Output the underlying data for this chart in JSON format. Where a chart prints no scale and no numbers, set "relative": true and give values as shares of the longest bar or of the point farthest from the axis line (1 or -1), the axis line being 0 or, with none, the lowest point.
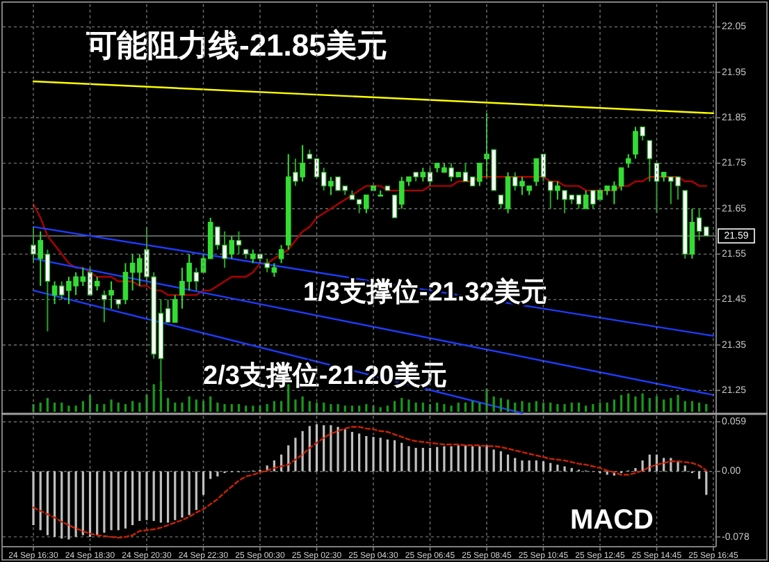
{
  "chart_data": [
    {
      "type": "candlestick",
      "tick_labels": "y",
      "grid": "y",
      "categories": [
        null,
        null,
        null,
        null,
        null,
        null,
        null,
        null,
        null,
        null,
        null,
        null,
        null,
        null,
        null,
        null,
        null,
        null,
        null,
        null,
        null,
        null,
        null,
        null,
        null,
        null,
        null,
        null,
        null,
        null,
        null,
        null,
        null,
        null,
        null,
        null,
        null,
        null,
        null,
        null,
        null,
        null,
        null,
        null,
        null,
        null,
        null,
        null,
        null,
        null,
        null,
        null,
        null,
        null,
        null,
        null,
        null,
        null,
        null,
        null,
        null,
        null,
        null,
        null,
        null,
        null,
        null,
        null,
        null,
        null,
        null,
        null,
        null,
        null,
        null,
        null,
        null,
        null,
        null,
        null,
        null,
        null,
        null,
        null,
        null,
        null,
        null,
        null,
        null,
        null,
        null,
        null,
        null,
        null,
        null,
        null,
        null
      ],
      "ylim": [
        21.2,
        22.1
      ],
      "yticks": [
        22.05,
        21.95,
        21.85,
        21.75,
        21.65,
        21.55,
        21.45,
        21.35,
        21.25
      ],
      "ohlc": [
        [
          21.57,
          21.61,
          21.53,
          21.55
        ],
        [
          21.54,
          21.6,
          21.48,
          21.58
        ],
        [
          21.55,
          21.56,
          21.38,
          21.49
        ],
        [
          21.46,
          21.49,
          21.44,
          21.48
        ],
        [
          21.48,
          21.49,
          21.45,
          21.46
        ],
        [
          21.47,
          21.5,
          21.44,
          21.49
        ],
        [
          21.48,
          21.51,
          21.46,
          21.5
        ],
        [
          21.49,
          21.52,
          21.48,
          21.5
        ],
        [
          21.51,
          21.52,
          21.46,
          21.46
        ],
        [
          21.48,
          21.5,
          21.47,
          21.49
        ],
        [
          21.46,
          21.47,
          21.4,
          21.45
        ],
        [
          21.46,
          21.49,
          21.43,
          21.47
        ],
        [
          21.45,
          21.45,
          21.43,
          21.44
        ],
        [
          21.45,
          21.53,
          21.44,
          21.51
        ],
        [
          21.51,
          21.55,
          21.47,
          21.53
        ],
        [
          21.51,
          21.55,
          21.48,
          21.54
        ],
        [
          21.56,
          21.61,
          21.49,
          21.5
        ],
        [
          21.5,
          21.51,
          21.32,
          21.33
        ],
        [
          21.42,
          21.45,
          21.25,
          21.32
        ],
        [
          21.43,
          21.45,
          21.4,
          21.4
        ],
        [
          21.4,
          21.46,
          21.4,
          21.45
        ],
        [
          21.46,
          21.52,
          21.43,
          21.49
        ],
        [
          21.49,
          21.55,
          21.47,
          21.53
        ],
        [
          21.51,
          21.52,
          21.47,
          21.49
        ],
        [
          21.51,
          21.55,
          21.51,
          21.54
        ],
        [
          21.54,
          21.63,
          21.54,
          21.62
        ],
        [
          21.61,
          21.61,
          21.56,
          21.57
        ],
        [
          21.57,
          21.6,
          21.52,
          21.54
        ],
        [
          21.55,
          21.59,
          21.54,
          21.58
        ],
        [
          21.58,
          21.6,
          21.55,
          21.57
        ],
        [
          21.56,
          21.56,
          21.54,
          21.55
        ],
        [
          21.54,
          21.56,
          21.53,
          21.55
        ],
        [
          21.55,
          21.55,
          21.53,
          21.54
        ],
        [
          21.53,
          21.54,
          21.51,
          21.52
        ],
        [
          21.51,
          21.53,
          21.5,
          21.52
        ],
        [
          21.54,
          21.57,
          21.53,
          21.56
        ],
        [
          21.57,
          21.77,
          21.56,
          21.72
        ],
        [
          21.73,
          21.76,
          21.7,
          21.71
        ],
        [
          21.72,
          21.79,
          21.71,
          21.75
        ],
        [
          21.77,
          21.78,
          21.76,
          21.76
        ],
        [
          21.76,
          21.76,
          21.72,
          21.72
        ],
        [
          21.73,
          21.74,
          21.69,
          21.7
        ],
        [
          21.7,
          21.72,
          21.68,
          21.71
        ],
        [
          21.72,
          21.72,
          21.69,
          21.69
        ],
        [
          21.7,
          21.7,
          21.68,
          21.69
        ],
        [
          21.68,
          21.69,
          21.67,
          21.67
        ],
        [
          21.67,
          21.67,
          21.64,
          21.66
        ],
        [
          21.65,
          21.68,
          21.64,
          21.68
        ],
        [
          21.69,
          21.7,
          21.69,
          21.7
        ],
        [
          21.68,
          21.69,
          21.68,
          21.68
        ],
        [
          21.7,
          21.7,
          21.69,
          21.69
        ],
        [
          21.68,
          21.68,
          21.63,
          21.63
        ],
        [
          21.66,
          21.72,
          21.65,
          21.71
        ],
        [
          21.71,
          21.72,
          21.7,
          21.72
        ],
        [
          21.73,
          21.73,
          21.71,
          21.72
        ],
        [
          21.72,
          21.74,
          21.71,
          21.73
        ],
        [
          21.73,
          21.74,
          21.7,
          21.71
        ],
        [
          21.74,
          21.75,
          21.73,
          21.75
        ],
        [
          21.73,
          21.75,
          21.73,
          21.74
        ],
        [
          21.74,
          21.75,
          21.71,
          21.72
        ],
        [
          21.72,
          21.73,
          21.72,
          21.73
        ],
        [
          21.73,
          21.75,
          21.71,
          21.71
        ],
        [
          21.72,
          21.72,
          21.7,
          21.7
        ],
        [
          21.71,
          21.75,
          21.7,
          21.75
        ],
        [
          21.76,
          21.86,
          21.72,
          21.77
        ],
        [
          21.78,
          21.78,
          21.69,
          21.69
        ],
        [
          21.68,
          21.68,
          21.65,
          21.66
        ],
        [
          21.65,
          21.73,
          21.64,
          21.72
        ],
        [
          21.72,
          21.73,
          21.69,
          21.7
        ],
        [
          21.7,
          21.72,
          21.68,
          21.71
        ],
        [
          21.69,
          21.7,
          21.68,
          21.7
        ],
        [
          21.71,
          21.76,
          21.7,
          21.76
        ],
        [
          21.77,
          21.77,
          21.71,
          21.72
        ],
        [
          21.71,
          21.71,
          21.65,
          21.69
        ],
        [
          21.69,
          21.71,
          21.67,
          21.7
        ],
        [
          21.69,
          21.69,
          21.64,
          21.67
        ],
        [
          21.68,
          21.68,
          21.66,
          21.67
        ],
        [
          21.68,
          21.68,
          21.65,
          21.66
        ],
        [
          21.65,
          21.69,
          21.65,
          21.68
        ],
        [
          21.69,
          21.69,
          21.65,
          21.66
        ],
        [
          21.67,
          21.69,
          21.67,
          21.69
        ],
        [
          21.69,
          21.7,
          21.68,
          21.7
        ],
        [
          21.69,
          21.71,
          21.66,
          21.7
        ],
        [
          21.7,
          21.74,
          21.69,
          21.74
        ],
        [
          21.75,
          21.77,
          21.74,
          21.76
        ],
        [
          21.77,
          21.83,
          21.76,
          21.82
        ],
        [
          21.83,
          21.83,
          21.8,
          21.81
        ],
        [
          21.8,
          21.8,
          21.71,
          21.76
        ],
        [
          21.75,
          21.75,
          21.64,
          21.71
        ],
        [
          21.72,
          21.73,
          21.71,
          21.73
        ],
        [
          21.72,
          21.72,
          21.66,
          21.71
        ],
        [
          21.72,
          21.72,
          21.67,
          21.7
        ],
        [
          21.69,
          21.69,
          21.54,
          21.55
        ],
        [
          21.55,
          21.65,
          21.54,
          21.62
        ],
        [
          21.63,
          21.65,
          21.58,
          21.6
        ],
        [
          21.61,
          21.61,
          21.59,
          21.59
        ],
        null
      ],
      "series": [
        {
          "type": "line",
          "color": "#b00000",
          "values": [
            21.66,
            21.63,
            21.59,
            21.57,
            21.55,
            21.53,
            21.52,
            21.52,
            21.51,
            21.5,
            21.5,
            21.5,
            21.49,
            21.49,
            21.49,
            21.48,
            21.48,
            21.47,
            21.47,
            21.46,
            21.46,
            21.46,
            21.46,
            21.46,
            21.47,
            21.47,
            21.48,
            21.49,
            21.5,
            21.5,
            21.5,
            21.51,
            21.53,
            21.53,
            21.54,
            21.55,
            21.56,
            21.58,
            21.6,
            21.61,
            21.63,
            21.64,
            21.65,
            21.66,
            21.67,
            21.68,
            21.69,
            21.7,
            21.7,
            21.7,
            21.69,
            21.69,
            21.69,
            21.69,
            21.69,
            21.69,
            21.7,
            21.7,
            21.7,
            21.7,
            21.71,
            21.71,
            21.71,
            21.72,
            21.72,
            21.72,
            21.72,
            21.72,
            21.72,
            21.72,
            21.72,
            21.72,
            21.72,
            21.71,
            21.71,
            21.7,
            21.7,
            21.7,
            21.69,
            21.69,
            21.69,
            21.69,
            21.69,
            21.7,
            21.7,
            21.71,
            21.71,
            21.72,
            21.72,
            21.72,
            21.72,
            21.72,
            21.71,
            21.71,
            21.7,
            21.7,
            null
          ]
        },
        {
          "type": "line",
          "color": "#ffff00",
          "values": [
            21.93,
            null,
            null,
            null,
            null,
            null,
            null,
            null,
            null,
            null,
            null,
            null,
            null,
            null,
            null,
            null,
            null,
            null,
            null,
            null,
            null,
            null,
            null,
            null,
            null,
            null,
            null,
            null,
            null,
            null,
            null,
            null,
            null,
            null,
            null,
            null,
            null,
            null,
            null,
            null,
            null,
            null,
            null,
            null,
            null,
            null,
            null,
            null,
            null,
            null,
            null,
            null,
            null,
            null,
            null,
            null,
            null,
            null,
            null,
            null,
            null,
            null,
            null,
            null,
            null,
            null,
            null,
            null,
            null,
            null,
            null,
            null,
            null,
            null,
            null,
            null,
            null,
            null,
            null,
            null,
            null,
            null,
            null,
            null,
            null,
            null,
            null,
            null,
            null,
            null,
            null,
            null,
            null,
            null,
            null,
            null,
            21.86
          ]
        },
        {
          "type": "line",
          "color": "#1e3cff",
          "values": [
            21.61,
            null,
            null,
            null,
            null,
            null,
            null,
            null,
            null,
            null,
            null,
            null,
            null,
            null,
            null,
            null,
            null,
            null,
            null,
            null,
            null,
            null,
            null,
            null,
            null,
            null,
            null,
            null,
            null,
            null,
            null,
            null,
            null,
            null,
            null,
            null,
            null,
            null,
            null,
            null,
            null,
            null,
            null,
            null,
            null,
            null,
            null,
            null,
            null,
            null,
            null,
            null,
            null,
            null,
            null,
            null,
            null,
            null,
            null,
            null,
            null,
            null,
            null,
            null,
            null,
            null,
            null,
            null,
            null,
            null,
            null,
            null,
            null,
            null,
            null,
            null,
            null,
            null,
            null,
            null,
            null,
            null,
            null,
            null,
            null,
            null,
            null,
            null,
            null,
            null,
            null,
            null,
            null,
            null,
            null,
            null,
            21.37
          ]
        },
        {
          "type": "line",
          "color": "#1e3cff",
          "values": [
            21.54,
            null,
            null,
            null,
            null,
            null,
            null,
            null,
            null,
            null,
            null,
            null,
            null,
            null,
            null,
            null,
            null,
            null,
            null,
            null,
            null,
            null,
            null,
            null,
            null,
            null,
            null,
            null,
            null,
            null,
            null,
            null,
            null,
            null,
            null,
            null,
            null,
            null,
            null,
            null,
            null,
            null,
            null,
            null,
            null,
            null,
            null,
            null,
            null,
            null,
            null,
            null,
            null,
            null,
            null,
            null,
            null,
            null,
            null,
            null,
            null,
            null,
            null,
            null,
            null,
            null,
            null,
            null,
            null,
            null,
            null,
            null,
            null,
            null,
            null,
            null,
            null,
            null,
            null,
            null,
            null,
            null,
            null,
            null,
            null,
            null,
            null,
            null,
            null,
            null,
            null,
            null,
            null,
            null,
            null,
            null,
            21.24
          ]
        },
        {
          "type": "line",
          "color": "#1e3cff",
          "values": [
            21.47,
            null,
            null,
            null,
            null,
            null,
            null,
            null,
            null,
            null,
            null,
            null,
            null,
            null,
            null,
            null,
            null,
            null,
            null,
            null,
            null,
            null,
            null,
            null,
            null,
            null,
            null,
            null,
            null,
            null,
            null,
            null,
            null,
            null,
            null,
            null,
            null,
            null,
            null,
            null,
            null,
            null,
            null,
            null,
            null,
            null,
            null,
            null,
            null,
            null,
            null,
            null,
            null,
            null,
            null,
            null,
            null,
            null,
            null,
            null,
            null,
            null,
            null,
            null,
            null,
            null,
            null,
            null,
            null,
            21.2,
            null,
            null,
            null,
            null,
            null,
            null,
            null,
            null,
            null,
            null,
            null,
            null,
            null,
            null,
            null,
            null,
            null,
            null,
            null,
            null,
            null,
            null,
            null,
            null,
            null,
            null,
            null
          ]
        }
      ],
      "ref_lines": [
        {
          "axis": "y",
          "value": 21.59,
          "label": "21.59",
          "color": "#808080"
        }
      ],
      "annotations": [
        "可能阻力线-21.85美元",
        "1/3支撑位-21.32美元",
        "2/3支撑位-21.20美元"
      ]
    },
    {
      "type": "bar",
      "relative": true,
      "color": "#1a9a1a",
      "categories": [
        null,
        null,
        null,
        null,
        null,
        null,
        null,
        null,
        null,
        null,
        null,
        null,
        null,
        null,
        null,
        null,
        null,
        null,
        null,
        null,
        null,
        null,
        null,
        null,
        null,
        null,
        null,
        null,
        null,
        null,
        null,
        null,
        null,
        null,
        null,
        null,
        null,
        null,
        null,
        null,
        null,
        null,
        null,
        null,
        null,
        null,
        null,
        null,
        null,
        null,
        null,
        null,
        null,
        null,
        null,
        null,
        null,
        null,
        null,
        null,
        null,
        null,
        null,
        null,
        null,
        null,
        null,
        null,
        null,
        null,
        null,
        null,
        null,
        null,
        null,
        null,
        null,
        null,
        null,
        null,
        null,
        null,
        null,
        null,
        null,
        null,
        null,
        null,
        null,
        null,
        null,
        null,
        null,
        null,
        null,
        null,
        null
      ],
      "values": [
        0.25,
        0.3,
        0.45,
        0.3,
        0.3,
        0.2,
        0.2,
        0.35,
        0.55,
        0.25,
        0.25,
        0.4,
        0.3,
        0.25,
        0.35,
        0.3,
        0.55,
        0.9,
        1,
        0.45,
        0.3,
        0.3,
        0.5,
        0.4,
        0.35,
        0.5,
        0.3,
        0.25,
        0.25,
        0.25,
        0.2,
        0.2,
        0.2,
        0.25,
        0.35,
        0.35,
        0.9,
        0.4,
        0.5,
        0.35,
        0.3,
        0.3,
        0.25,
        0.25,
        0.2,
        0.2,
        0.2,
        0.25,
        0.2,
        0.15,
        0.2,
        0.35,
        0.45,
        0.4,
        0.3,
        0.3,
        0.25,
        0.3,
        0.25,
        0.2,
        0.3,
        0.3,
        0.35,
        0.3,
        0.75,
        0.5,
        0.45,
        0.4,
        0.3,
        0.35,
        0.3,
        0.35,
        0.3,
        0.3,
        0.25,
        0.25,
        0.3,
        0.3,
        0.2,
        0.25,
        0.3,
        0.3,
        0.4,
        0.55,
        0.6,
        0.5,
        0.6,
        0.45,
        0.5,
        0.4,
        0.45,
        0.55,
        0.35,
        0.35,
        0.3,
        0.25,
        null
      ]
    },
    {
      "type": "bar",
      "grid": true,
      "categories": [
        "24 Sep 16:30",
        null,
        null,
        null,
        null,
        null,
        null,
        null,
        "24 Sep 18:30",
        null,
        null,
        null,
        null,
        null,
        null,
        null,
        "24 Sep 20:30",
        null,
        null,
        null,
        null,
        null,
        null,
        null,
        "24 Sep 22:30",
        null,
        null,
        null,
        null,
        null,
        null,
        null,
        "25 Sep 00:30",
        null,
        null,
        null,
        null,
        null,
        null,
        null,
        "25 Sep 02:30",
        null,
        null,
        null,
        null,
        null,
        null,
        null,
        "25 Sep 04:30",
        null,
        null,
        null,
        null,
        null,
        null,
        null,
        "25 Sep 06:45",
        null,
        null,
        null,
        null,
        null,
        null,
        null,
        "25 Sep 08:45",
        null,
        null,
        null,
        null,
        null,
        null,
        null,
        "25 Sep 10:45",
        null,
        null,
        null,
        null,
        null,
        null,
        null,
        "25 Sep 12:45",
        null,
        null,
        null,
        null,
        null,
        null,
        null,
        "25 Sep 14:45",
        null,
        null,
        null,
        null,
        null,
        null,
        null,
        "25 Sep 16:45"
      ],
      "ylim": [
        -0.088,
        0.066
      ],
      "yticks": [
        0.059,
        {
          "value": 0,
          "label": "0.00"
        },
        -0.078
      ],
      "series": [
        {
          "color": "#c0c0c0",
          "values": [
            -0.064,
            -0.07,
            -0.076,
            -0.078,
            -0.08,
            -0.081,
            -0.078,
            -0.076,
            -0.078,
            -0.076,
            -0.073,
            -0.07,
            -0.07,
            -0.068,
            -0.064,
            -0.059,
            -0.058,
            -0.059,
            -0.061,
            -0.061,
            -0.058,
            -0.055,
            -0.052,
            -0.046,
            -0.028,
            -0.009,
            -0.006,
            -0.002,
            -0.001,
            -0.001,
            0,
            0.001,
            0.002,
            0.007,
            0.013,
            0.02,
            0.031,
            0.04,
            0.048,
            0.054,
            0.056,
            0.055,
            0.055,
            0.053,
            0.05,
            0.047,
            0.045,
            0.042,
            0.041,
            0.04,
            0.038,
            0.037,
            0.034,
            0.03,
            0.028,
            0.028,
            0.028,
            0.029,
            0.03,
            0.03,
            0.031,
            0.031,
            0.03,
            0.03,
            0.031,
            0.026,
            0.024,
            0.02,
            0.016,
            0.013,
            0.013,
            0.013,
            0.012,
            0.01,
            0.008,
            0.006,
            0.004,
            0.002,
            0.001,
            0,
            -0.002,
            -0.004,
            -0.005,
            -0.002,
            0.001,
            0.004,
            0.013,
            0.02,
            0.02,
            0.016,
            0.016,
            0.013,
            0.007,
            -0.002,
            -0.009,
            -0.028,
            null
          ]
        },
        {
          "type": "line",
          "color": "#cc2200",
          "line_style": "dashed",
          "values": [
            -0.043,
            -0.047,
            -0.051,
            -0.055,
            -0.06,
            -0.064,
            -0.068,
            -0.071,
            -0.074,
            -0.076,
            -0.077,
            -0.078,
            -0.079,
            -0.078,
            -0.076,
            -0.071,
            -0.07,
            -0.069,
            -0.067,
            -0.064,
            -0.061,
            -0.058,
            -0.054,
            -0.049,
            -0.045,
            -0.039,
            -0.033,
            -0.025,
            -0.018,
            -0.011,
            -0.006,
            -0.004,
            -0.001,
            0.001,
            0.004,
            0.006,
            0.008,
            0.014,
            0.02,
            0.028,
            0.034,
            0.04,
            0.045,
            0.048,
            0.051,
            0.053,
            0.053,
            0.051,
            0.05,
            0.048,
            0.047,
            0.044,
            0.041,
            0.038,
            0.036,
            0.035,
            0.034,
            0.033,
            0.032,
            0.032,
            0.032,
            0.031,
            0.031,
            0.031,
            0.03,
            0.03,
            0.029,
            0.027,
            0.025,
            0.023,
            0.021,
            0.019,
            0.017,
            0.015,
            0.014,
            0.013,
            0.011,
            0.009,
            0.008,
            0.006,
            0.004,
            0.001,
            -0.001,
            -0.004,
            -0.004,
            -0.002,
            0.001,
            0.005,
            0.008,
            0.01,
            0.012,
            0.012,
            0.011,
            0.01,
            0.007,
            0.001,
            null
          ]
        }
      ],
      "annotations": [
        "MACD"
      ]
    }
  ]
}
